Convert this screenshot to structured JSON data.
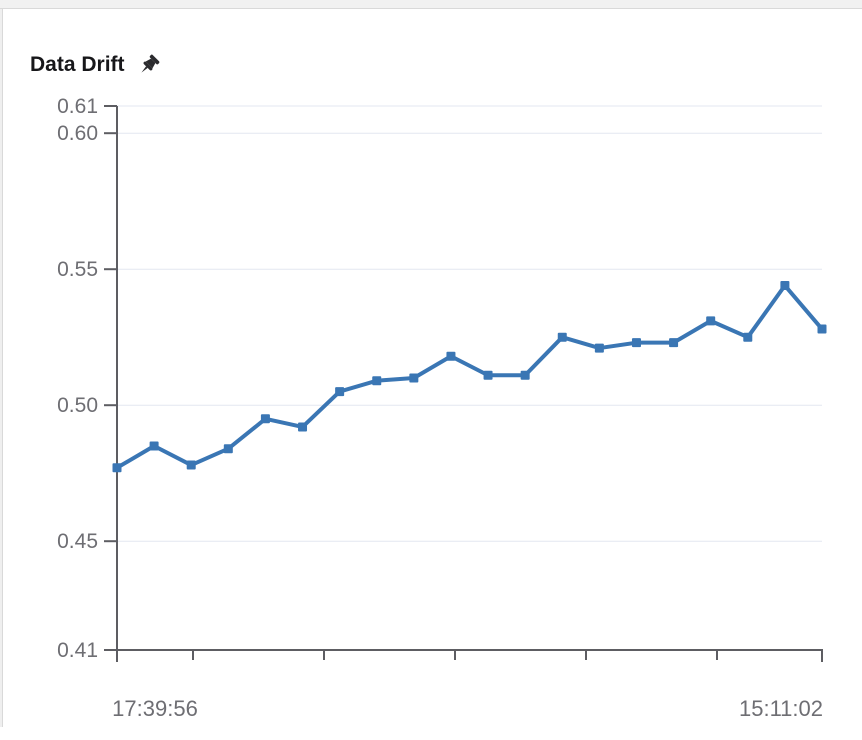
{
  "panel": {
    "title": "Data Drift",
    "icons": {
      "title_pin": "pin-icon"
    }
  },
  "chart_data": {
    "type": "line",
    "title": "Data Drift",
    "series": [
      {
        "name": "Data Drift",
        "values": [
          0.477,
          0.485,
          0.478,
          0.484,
          0.495,
          0.492,
          0.505,
          0.509,
          0.51,
          0.518,
          0.511,
          0.511,
          0.525,
          0.521,
          0.523,
          0.523,
          0.531,
          0.525,
          0.544,
          0.528
        ]
      }
    ],
    "x_labels": [
      "17:39:56",
      "15:11:02"
    ],
    "x_tick_count": 7,
    "y_ticks": [
      "0.61",
      "0.60",
      "0.55",
      "0.50",
      "0.45",
      "0.41"
    ],
    "ylim": [
      0.41,
      0.61
    ],
    "grid": true,
    "legend": false,
    "marker": "square",
    "colors": {
      "line": "#3a76b4",
      "grid": "#e3e7f0",
      "axis": "#5d5d62",
      "tick_labels": "#6e6e73",
      "title": "#17171a"
    }
  }
}
